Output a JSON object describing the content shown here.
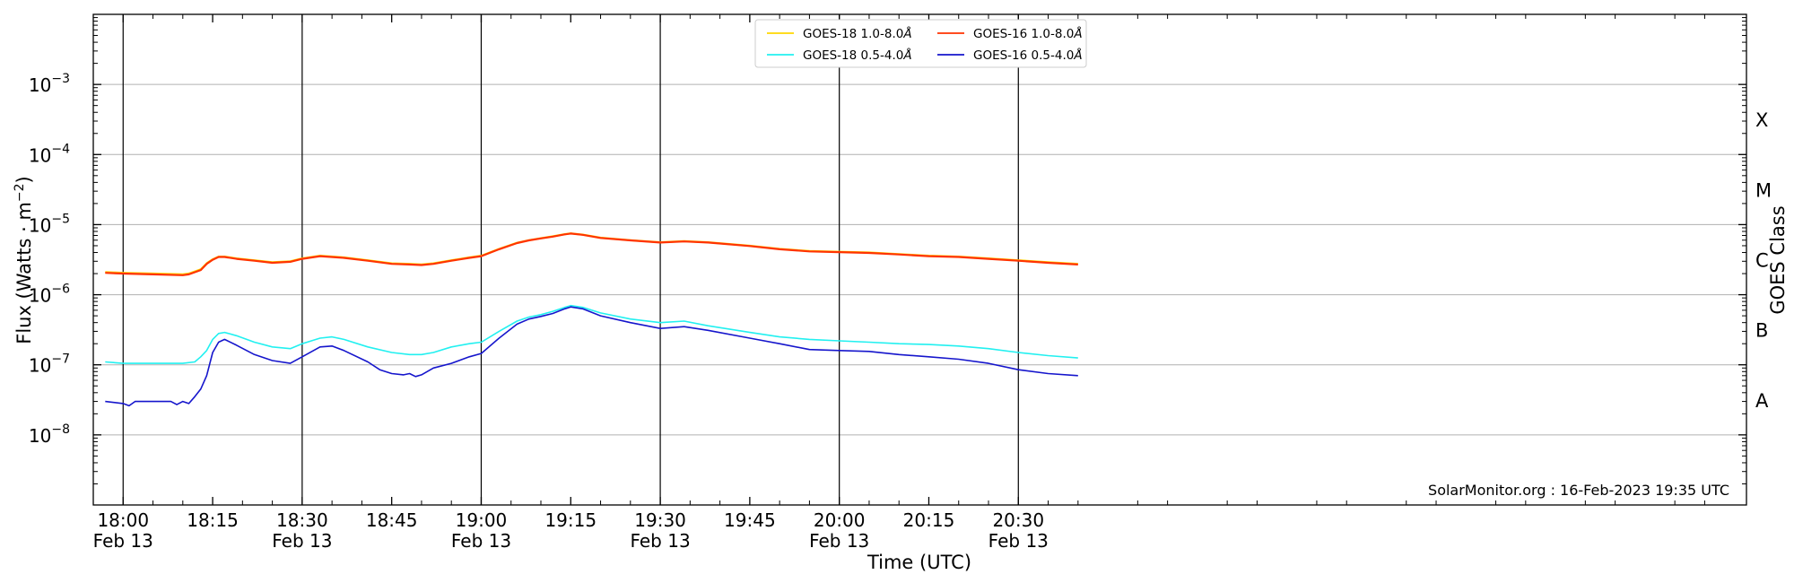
{
  "chart_data": {
    "type": "line",
    "xlabel": "Time (UTC)",
    "ylabel_main": "Flux (Watts · m",
    "ylabel_sup": "−2",
    "ylabel_close": ")",
    "ylabel_right": "GOES Class",
    "yscale": "log",
    "ylim": [
      1e-09,
      0.01
    ],
    "y_ticks": [
      {
        "exp": -8,
        "base": "10",
        "sup": "−8"
      },
      {
        "exp": -7,
        "base": "10",
        "sup": "−7"
      },
      {
        "exp": -6,
        "base": "10",
        "sup": "−6"
      },
      {
        "exp": -5,
        "base": "10",
        "sup": "−5"
      },
      {
        "exp": -4,
        "base": "10",
        "sup": "−4"
      },
      {
        "exp": -3,
        "base": "10",
        "sup": "−3"
      }
    ],
    "xlim_minutes": [
      -5,
      272
    ],
    "x_ticks": [
      {
        "min": 0,
        "time": "18:00",
        "date": "Feb 13",
        "vline": true
      },
      {
        "min": 15,
        "time": "18:15",
        "date": "",
        "vline": false
      },
      {
        "min": 30,
        "time": "18:30",
        "date": "Feb 13",
        "vline": true
      },
      {
        "min": 45,
        "time": "18:45",
        "date": "",
        "vline": false
      },
      {
        "min": 60,
        "time": "19:00",
        "date": "Feb 13",
        "vline": true
      },
      {
        "min": 75,
        "time": "19:15",
        "date": "",
        "vline": false
      },
      {
        "min": 90,
        "time": "19:30",
        "date": "Feb 13",
        "vline": true
      },
      {
        "min": 105,
        "time": "19:45",
        "date": "",
        "vline": false
      },
      {
        "min": 120,
        "time": "20:00",
        "date": "Feb 13",
        "vline": true
      },
      {
        "min": 135,
        "time": "20:15",
        "date": "",
        "vline": false
      },
      {
        "min": 150,
        "time": "20:30",
        "date": "Feb 13",
        "vline": true
      }
    ],
    "goes_classes": [
      {
        "label": "A",
        "exp": -7.5
      },
      {
        "label": "B",
        "exp": -6.5
      },
      {
        "label": "C",
        "exp": -5.5
      },
      {
        "label": "M",
        "exp": -4.5
      },
      {
        "label": "X",
        "exp": -3.5
      }
    ],
    "grid": "horizontal",
    "legend_position": "top-center",
    "credit": "SolarMonitor.org : 16-Feb-2023 19:35 UTC",
    "series": [
      {
        "name": "GOES-18 1.0-8.0",
        "angstrom": "Å",
        "color": "#FFD700",
        "x": [
          -3,
          0,
          5,
          10,
          11,
          13,
          14,
          15,
          16,
          17,
          19,
          22,
          25,
          28,
          30,
          33,
          37,
          41,
          45,
          48,
          50,
          52,
          55,
          58,
          60,
          63,
          66,
          68,
          70,
          72,
          74,
          75,
          77,
          80,
          85,
          90,
          94,
          98,
          105,
          110,
          115,
          120,
          125,
          130,
          135,
          140,
          145,
          150,
          155,
          160
        ],
        "y": [
          2.1e-06,
          2.05e-06,
          2e-06,
          1.95e-06,
          2e-06,
          2.3e-06,
          2.8e-06,
          3.2e-06,
          3.5e-06,
          3.5e-06,
          3.3e-06,
          3.1e-06,
          2.9e-06,
          3e-06,
          3.3e-06,
          3.6e-06,
          3.4e-06,
          3.1e-06,
          2.8e-06,
          2.75e-06,
          2.7e-06,
          2.8e-06,
          3.1e-06,
          3.4e-06,
          3.6e-06,
          4.5e-06,
          5.5e-06,
          6e-06,
          6.4e-06,
          6.8e-06,
          7.3e-06,
          7.5e-06,
          7.2e-06,
          6.5e-06,
          6e-06,
          5.6e-06,
          5.8e-06,
          5.6e-06,
          5e-06,
          4.5e-06,
          4.2e-06,
          4.1e-06,
          4e-06,
          3.8e-06,
          3.6e-06,
          3.5e-06,
          3.3e-06,
          3.1e-06,
          2.9e-06,
          2.75e-06
        ]
      },
      {
        "name": "GOES-16 1.0-8.0",
        "angstrom": "Å",
        "color": "#FF3300",
        "x": [
          -3,
          0,
          5,
          10,
          11,
          13,
          14,
          15,
          16,
          17,
          19,
          22,
          25,
          28,
          30,
          33,
          37,
          41,
          45,
          48,
          50,
          52,
          55,
          58,
          60,
          63,
          66,
          68,
          70,
          72,
          74,
          75,
          77,
          80,
          85,
          90,
          94,
          98,
          105,
          110,
          115,
          120,
          125,
          130,
          135,
          140,
          145,
          150,
          155,
          160
        ],
        "y": [
          2.05e-06,
          2e-06,
          1.95e-06,
          1.9e-06,
          1.95e-06,
          2.25e-06,
          2.75e-06,
          3.15e-06,
          3.45e-06,
          3.45e-06,
          3.25e-06,
          3.05e-06,
          2.85e-06,
          2.95e-06,
          3.25e-06,
          3.55e-06,
          3.35e-06,
          3.05e-06,
          2.75e-06,
          2.7e-06,
          2.65e-06,
          2.75e-06,
          3.05e-06,
          3.35e-06,
          3.55e-06,
          4.45e-06,
          5.45e-06,
          5.95e-06,
          6.35e-06,
          6.75e-06,
          7.25e-06,
          7.45e-06,
          7.15e-06,
          6.45e-06,
          5.95e-06,
          5.55e-06,
          5.75e-06,
          5.55e-06,
          4.95e-06,
          4.45e-06,
          4.15e-06,
          4.05e-06,
          3.95e-06,
          3.75e-06,
          3.55e-06,
          3.45e-06,
          3.25e-06,
          3.05e-06,
          2.85e-06,
          2.7e-06
        ]
      },
      {
        "name": "GOES-18 0.5-4.0",
        "angstrom": "Å",
        "color": "#22F0F0",
        "x": [
          -3,
          0,
          3,
          5,
          8,
          10,
          12,
          13,
          14,
          15,
          16,
          17,
          19,
          22,
          25,
          28,
          30,
          33,
          35,
          37,
          41,
          45,
          48,
          50,
          52,
          55,
          58,
          60,
          63,
          66,
          68,
          70,
          72,
          74,
          75,
          77,
          80,
          85,
          90,
          94,
          98,
          105,
          110,
          115,
          120,
          125,
          130,
          135,
          140,
          145,
          150,
          155,
          160
        ],
        "y": [
          1.1e-07,
          1.05e-07,
          1.05e-07,
          1.05e-07,
          1.05e-07,
          1.05e-07,
          1.1e-07,
          1.3e-07,
          1.6e-07,
          2.3e-07,
          2.8e-07,
          2.9e-07,
          2.6e-07,
          2.1e-07,
          1.8e-07,
          1.7e-07,
          2e-07,
          2.4e-07,
          2.5e-07,
          2.3e-07,
          1.8e-07,
          1.5e-07,
          1.4e-07,
          1.4e-07,
          1.5e-07,
          1.8e-07,
          2e-07,
          2.1e-07,
          3e-07,
          4.2e-07,
          4.8e-07,
          5.2e-07,
          5.8e-07,
          6.6e-07,
          7e-07,
          6.6e-07,
          5.5e-07,
          4.5e-07,
          4e-07,
          4.2e-07,
          3.6e-07,
          2.9e-07,
          2.5e-07,
          2.3e-07,
          2.2e-07,
          2.1e-07,
          2e-07,
          1.95e-07,
          1.85e-07,
          1.7e-07,
          1.5e-07,
          1.35e-07,
          1.25e-07
        ]
      },
      {
        "name": "GOES-16 0.5-4.0",
        "angstrom": "Å",
        "color": "#1515CC",
        "x": [
          -3,
          0,
          1,
          2,
          4,
          6,
          8,
          9,
          10,
          11,
          12,
          13,
          14,
          15,
          16,
          17,
          19,
          22,
          25,
          28,
          30,
          33,
          35,
          37,
          41,
          43,
          45,
          47,
          48,
          49,
          50,
          52,
          55,
          58,
          60,
          63,
          66,
          68,
          70,
          72,
          74,
          75,
          77,
          80,
          85,
          90,
          94,
          98,
          105,
          110,
          115,
          120,
          125,
          130,
          135,
          140,
          145,
          150,
          155,
          160
        ],
        "y": [
          3e-08,
          2.8e-08,
          2.6e-08,
          3e-08,
          3e-08,
          3e-08,
          3e-08,
          2.7e-08,
          3e-08,
          2.8e-08,
          3.5e-08,
          4.5e-08,
          7e-08,
          1.5e-07,
          2.1e-07,
          2.3e-07,
          1.9e-07,
          1.4e-07,
          1.15e-07,
          1.05e-07,
          1.3e-07,
          1.8e-07,
          1.85e-07,
          1.6e-07,
          1.1e-07,
          8.5e-08,
          7.5e-08,
          7.2e-08,
          7.5e-08,
          6.8e-08,
          7.2e-08,
          9e-08,
          1.05e-07,
          1.3e-07,
          1.45e-07,
          2.4e-07,
          3.8e-07,
          4.5e-07,
          4.9e-07,
          5.4e-07,
          6.3e-07,
          6.7e-07,
          6.3e-07,
          5e-07,
          4e-07,
          3.3e-07,
          3.5e-07,
          3.1e-07,
          2.4e-07,
          2e-07,
          1.65e-07,
          1.6e-07,
          1.55e-07,
          1.4e-07,
          1.3e-07,
          1.2e-07,
          1.05e-07,
          8.5e-08,
          7.5e-08,
          7e-08
        ]
      }
    ]
  }
}
